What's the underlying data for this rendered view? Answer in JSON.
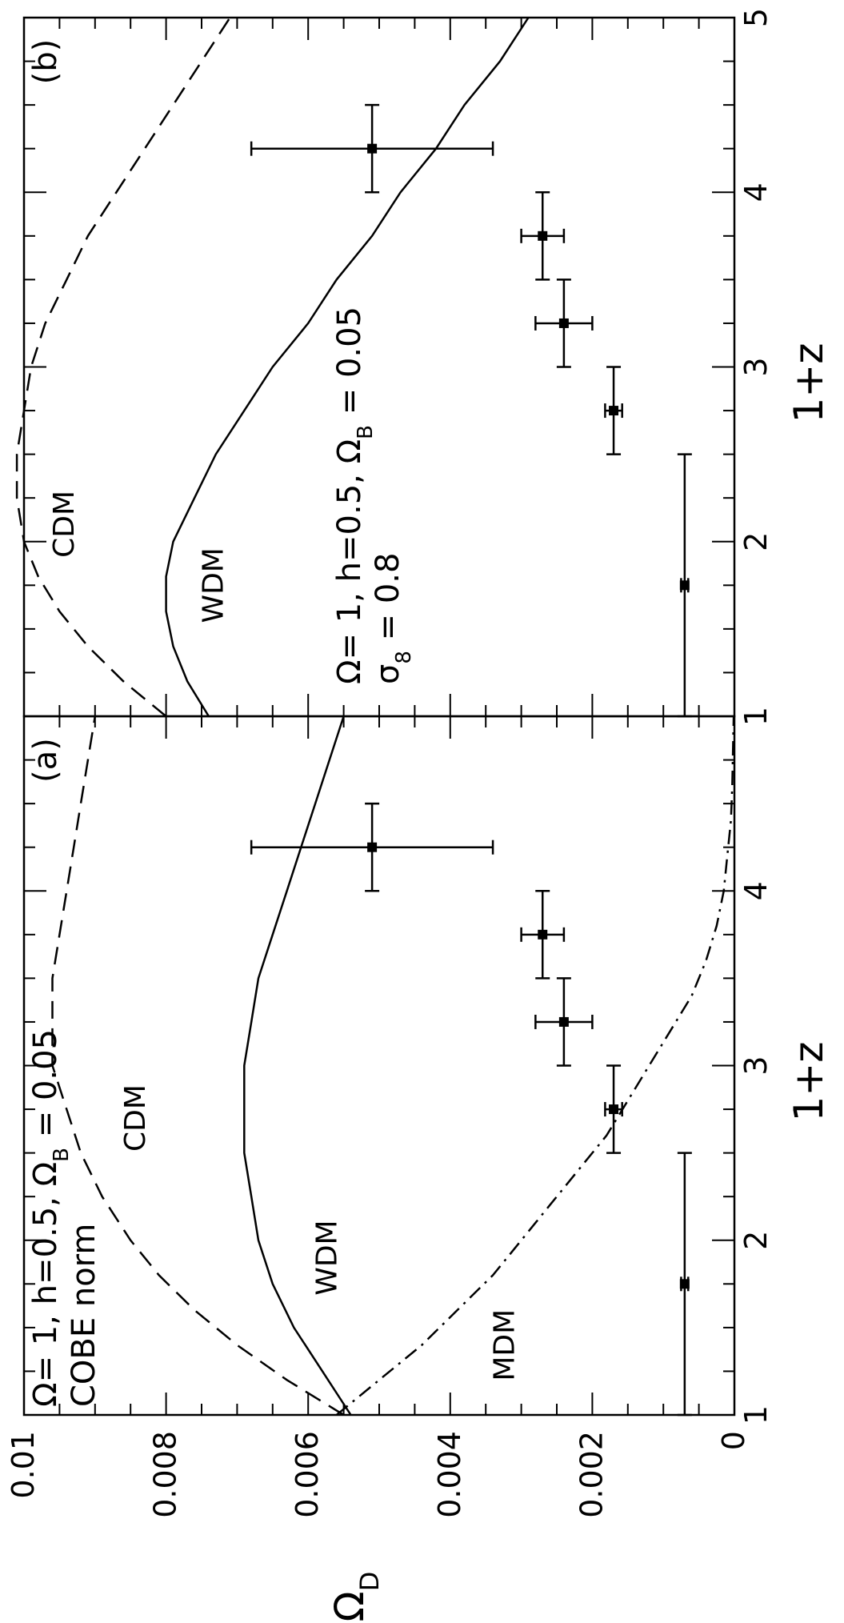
{
  "chart_data": [
    {
      "panel_label": "(a)",
      "type": "line",
      "xlabel": "1+z",
      "ylabel": "Ω",
      "ylabel_sub": "D",
      "xlim": [
        1,
        5
      ],
      "ylim": [
        0,
        0.01
      ],
      "x_ticks": [
        "1",
        "2",
        "3",
        "4"
      ],
      "y_ticks": [
        "0",
        "0.002",
        "0.004",
        "0.006",
        "0.008",
        "0.01"
      ],
      "params_text": "Ω= 1, h=0.5, Ω",
      "params_sub": "B",
      "params_tail": " = 0.05",
      "norm_text": "COBE norm",
      "series": [
        {
          "name": "CDM",
          "style": "dashed",
          "x": [
            1.0,
            1.2,
            1.4,
            1.6,
            1.8,
            2.0,
            2.25,
            2.5,
            2.75,
            3.0,
            3.25,
            3.5,
            3.75,
            4.0,
            4.25,
            4.5,
            4.75,
            5.0
          ],
          "y": [
            0.0055,
            0.0063,
            0.007,
            0.0076,
            0.0081,
            0.0085,
            0.0089,
            0.0092,
            0.0094,
            0.0096,
            0.0096,
            0.0096,
            0.0095,
            0.0094,
            0.0093,
            0.0092,
            0.0091,
            0.009
          ]
        },
        {
          "name": "WDM",
          "style": "solid",
          "x": [
            1.0,
            1.25,
            1.5,
            1.75,
            2.0,
            2.25,
            2.5,
            2.75,
            3.0,
            3.25,
            3.5,
            3.75,
            4.0,
            4.25,
            4.5,
            4.75,
            5.0
          ],
          "y": [
            0.0054,
            0.0058,
            0.0062,
            0.0065,
            0.0067,
            0.0068,
            0.0069,
            0.0069,
            0.0069,
            0.0068,
            0.0067,
            0.0065,
            0.0063,
            0.0061,
            0.0059,
            0.0057,
            0.0055
          ]
        },
        {
          "name": "MDM",
          "style": "dashdot",
          "x": [
            1.0,
            1.2,
            1.4,
            1.6,
            1.8,
            2.0,
            2.2,
            2.4,
            2.6,
            2.8,
            3.0,
            3.2,
            3.4,
            3.6,
            3.8,
            4.0,
            4.2,
            4.4,
            4.6,
            4.8,
            5.0
          ],
          "y": [
            0.0056,
            0.005,
            0.0044,
            0.0039,
            0.0034,
            0.003,
            0.0026,
            0.0022,
            0.0018,
            0.0015,
            0.0012,
            0.0009,
            0.0006,
            0.0004,
            0.00025,
            0.00015,
            0.0001,
            5e-05,
            3e-05,
            2e-05,
            1e-05
          ]
        }
      ],
      "data_points": [
        {
          "x": 1.75,
          "xerr": [
            0.75,
            0.75
          ],
          "y": 0.0007,
          "yerr": [
            5e-05,
            5e-05
          ]
        },
        {
          "x": 2.75,
          "xerr": [
            0.25,
            0.25
          ],
          "y": 0.0017,
          "yerr": [
            0.00012,
            0.00012
          ]
        },
        {
          "x": 3.25,
          "xerr": [
            0.25,
            0.25
          ],
          "y": 0.0024,
          "yerr": [
            0.0004,
            0.0004
          ]
        },
        {
          "x": 3.75,
          "xerr": [
            0.25,
            0.25
          ],
          "y": 0.0027,
          "yerr": [
            0.0003,
            0.0003
          ]
        },
        {
          "x": 4.25,
          "xerr": [
            0.25,
            0.25
          ],
          "y": 0.0051,
          "yerr": [
            0.0017,
            0.0017
          ]
        }
      ],
      "curve_labels": [
        {
          "text": "CDM",
          "x": 2.7,
          "y": 0.0083
        },
        {
          "text": "WDM",
          "x": 1.9,
          "y": 0.0056
        },
        {
          "text": "MDM",
          "x": 1.4,
          "y": 0.0031
        }
      ]
    },
    {
      "panel_label": "(b)",
      "type": "line",
      "xlabel": "1+z",
      "xlim": [
        1,
        5
      ],
      "ylim": [
        0,
        0.01
      ],
      "x_ticks": [
        "1",
        "2",
        "3",
        "4",
        "5"
      ],
      "params_text": "Ω= 1, h=0.5, Ω",
      "params_sub": "B",
      "params_tail": " = 0.05",
      "sigma_text": "σ",
      "sigma_sub": "8",
      "sigma_tail": " = 0.8",
      "series": [
        {
          "name": "CDM",
          "style": "dashed",
          "x": [
            1.0,
            1.2,
            1.4,
            1.6,
            1.8,
            2.0,
            2.25,
            2.5,
            2.75,
            3.0,
            3.25,
            3.5,
            3.75,
            4.0,
            4.25,
            4.5,
            4.75,
            5.0
          ],
          "y": [
            0.008,
            0.0086,
            0.0091,
            0.0095,
            0.0098,
            0.01,
            0.0101,
            0.0101,
            0.01,
            0.0099,
            0.0097,
            0.0094,
            0.0091,
            0.0087,
            0.0083,
            0.0079,
            0.0075,
            0.0071
          ]
        },
        {
          "name": "WDM",
          "style": "solid",
          "x": [
            1.0,
            1.2,
            1.4,
            1.6,
            1.8,
            2.0,
            2.25,
            2.5,
            2.75,
            3.0,
            3.25,
            3.5,
            3.75,
            4.0,
            4.25,
            4.5,
            4.75,
            5.0
          ],
          "y": [
            0.0074,
            0.0077,
            0.0079,
            0.008,
            0.008,
            0.0079,
            0.0076,
            0.0073,
            0.0069,
            0.0065,
            0.006,
            0.0056,
            0.0051,
            0.0047,
            0.0042,
            0.0038,
            0.0033,
            0.0029
          ]
        }
      ],
      "data_points": [
        {
          "x": 1.75,
          "xerr": [
            0.75,
            0.75
          ],
          "y": 0.0007,
          "yerr": [
            5e-05,
            5e-05
          ]
        },
        {
          "x": 2.75,
          "xerr": [
            0.25,
            0.25
          ],
          "y": 0.0017,
          "yerr": [
            0.00012,
            0.00012
          ]
        },
        {
          "x": 3.25,
          "xerr": [
            0.25,
            0.25
          ],
          "y": 0.0024,
          "yerr": [
            0.0004,
            0.0004
          ]
        },
        {
          "x": 3.75,
          "xerr": [
            0.25,
            0.25
          ],
          "y": 0.0027,
          "yerr": [
            0.0003,
            0.0003
          ]
        },
        {
          "x": 4.25,
          "xerr": [
            0.25,
            0.25
          ],
          "y": 0.0051,
          "yerr": [
            0.0017,
            0.0017
          ]
        }
      ],
      "curve_labels": [
        {
          "text": "CDM",
          "x": 2.1,
          "y": 0.0093
        },
        {
          "text": "WDM",
          "x": 1.75,
          "y": 0.0072
        }
      ]
    }
  ]
}
